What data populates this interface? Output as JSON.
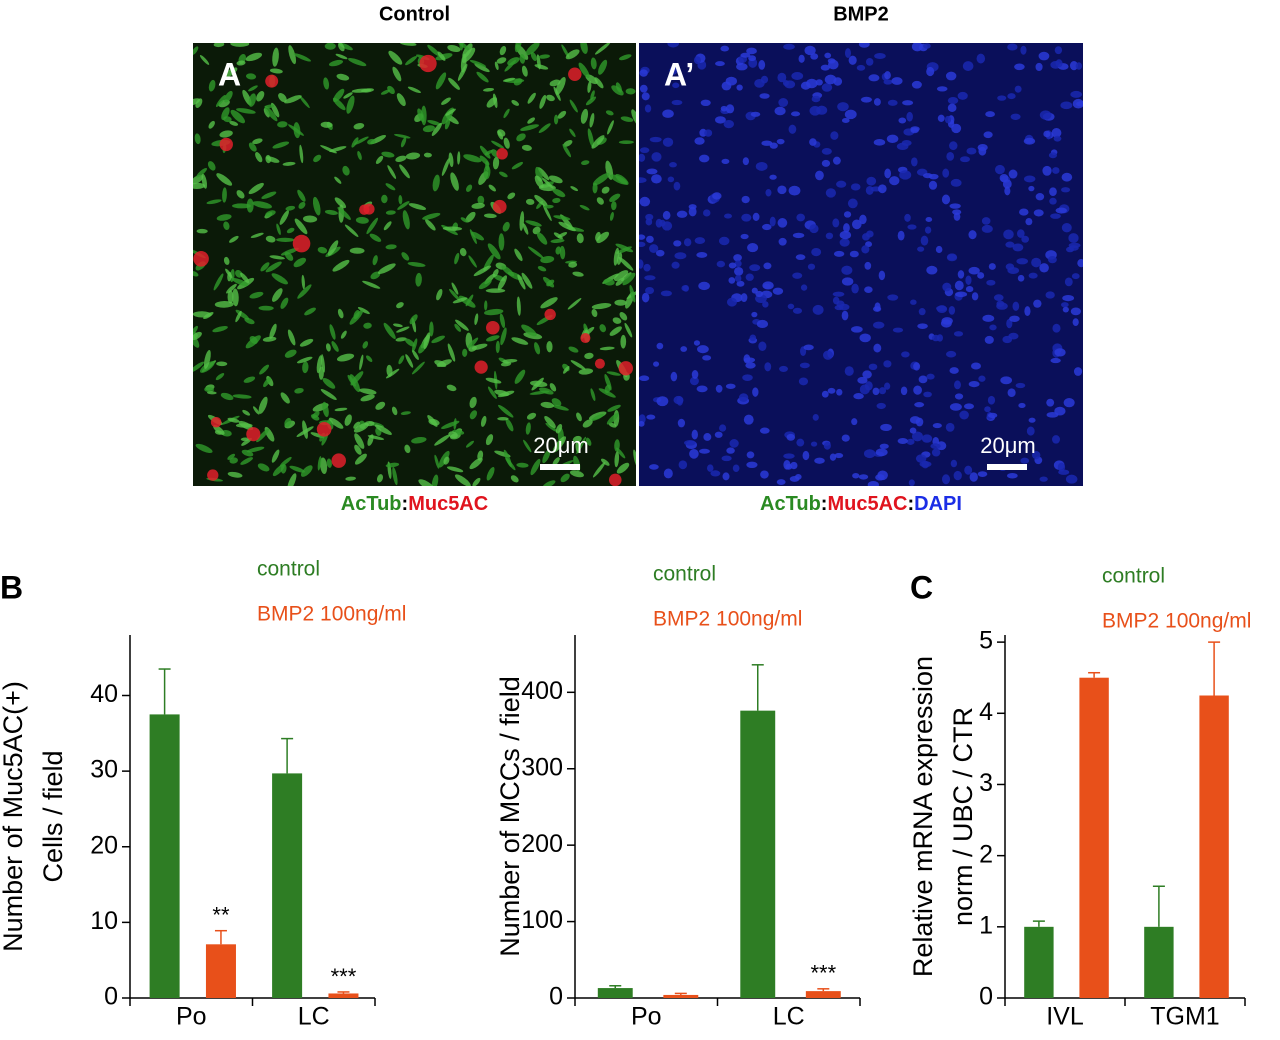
{
  "images": [
    {
      "title": "Control",
      "label": "A",
      "scale": "20μm"
    },
    {
      "title": "BMP2",
      "label": "A’",
      "scale": "20μm"
    }
  ],
  "captions": [
    [
      {
        "text": "AcTub",
        "color": "#2a8a22"
      },
      {
        "text": ":",
        "color": "#000000"
      },
      {
        "text": "Muc5AC",
        "color": "#e0141e"
      }
    ],
    [
      {
        "text": "AcTub",
        "color": "#2a8a22"
      },
      {
        "text": ":",
        "color": "#000000"
      },
      {
        "text": "Muc5AC",
        "color": "#e0141e"
      },
      {
        "text": ":",
        "color": "#000000"
      },
      {
        "text": "DAPI",
        "color": "#1c2ee6"
      }
    ]
  ],
  "chart_data": [
    {
      "type": "bar",
      "panel_label": "B",
      "ylabel": [
        "Number of Muc5AC(+)",
        "Cells / field"
      ],
      "categories": [
        "Po",
        "LC"
      ],
      "series": [
        {
          "name": "control",
          "color": "#2e7d24",
          "values": [
            37.5,
            29.7
          ],
          "errors": [
            6,
            4.6
          ]
        },
        {
          "name": "BMP2 100ng/ml",
          "color": "#e8501a",
          "values": [
            7.1,
            0.6
          ],
          "errors": [
            1.8,
            0.2
          ],
          "significance": [
            "**",
            "***"
          ]
        }
      ],
      "ylim": [
        0,
        48
      ],
      "yticks": [
        0,
        10,
        20,
        30,
        40
      ]
    },
    {
      "type": "bar",
      "ylabel": [
        "Number of MCCs / field"
      ],
      "categories": [
        "Po",
        "LC"
      ],
      "series": [
        {
          "name": "control",
          "color": "#2e7d24",
          "values": [
            13,
            376
          ],
          "errors": [
            3,
            60
          ]
        },
        {
          "name": "BMP2 100ng/ml",
          "color": "#e8501a",
          "values": [
            4,
            9
          ],
          "errors": [
            2,
            3
          ],
          "significance": [
            null,
            "***"
          ]
        }
      ],
      "ylim": [
        0,
        475
      ],
      "yticks": [
        0,
        100,
        200,
        300,
        400
      ]
    },
    {
      "type": "bar",
      "panel_label": "C",
      "ylabel": [
        "Relative mRNA expression",
        "norm / UBC / CTR"
      ],
      "categories": [
        "IVL",
        "TGM1"
      ],
      "series": [
        {
          "name": "control",
          "color": "#2e7d24",
          "values": [
            1,
            1
          ],
          "errors": [
            0.08,
            0.57
          ]
        },
        {
          "name": "BMP2 100ng/ml",
          "color": "#e8501a",
          "values": [
            4.5,
            4.25
          ],
          "errors": [
            0.07,
            0.75
          ]
        }
      ],
      "ylim": [
        0,
        5.1
      ],
      "yticks": [
        0,
        1,
        2,
        3,
        4,
        5
      ]
    }
  ]
}
